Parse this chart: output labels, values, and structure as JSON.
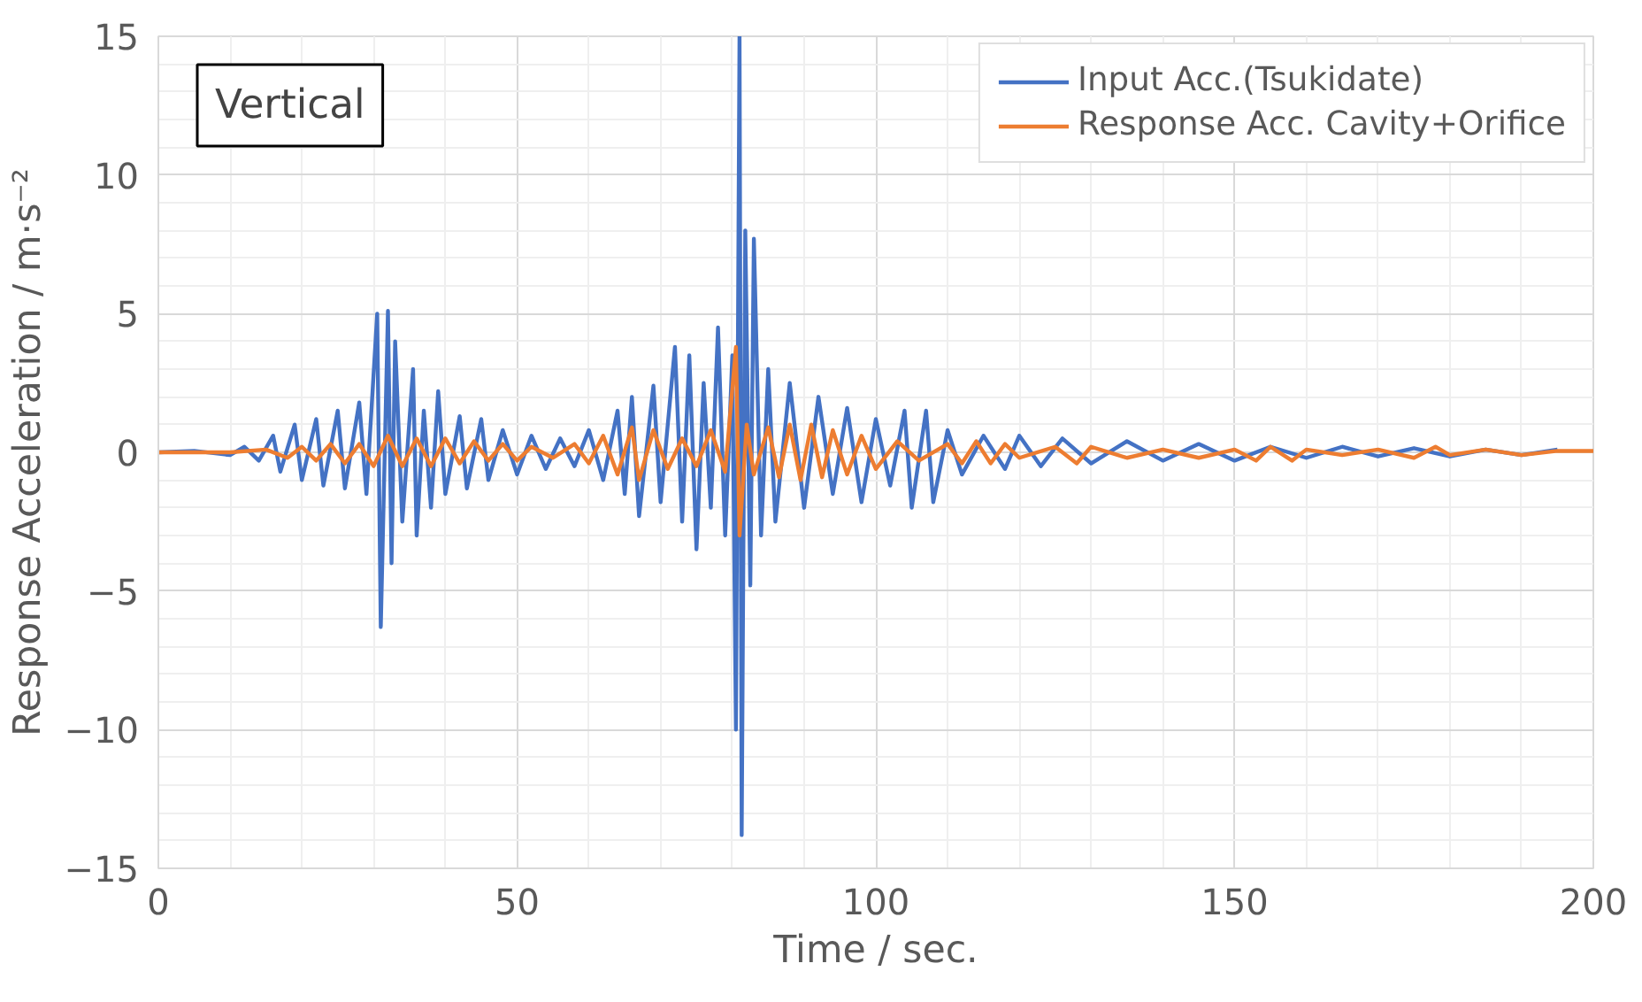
{
  "chart_data": {
    "type": "line",
    "xlabel": "Time / sec.",
    "ylabel": "Response Acceleration / m·s⁻²",
    "annotations": [
      "Vertical"
    ],
    "xlim": [
      0,
      200
    ],
    "ylim": [
      -15,
      15
    ],
    "xticks": [
      0,
      50,
      100,
      150,
      200
    ],
    "yticks": [
      -15,
      -10,
      -5,
      0,
      5,
      10,
      15
    ],
    "grid": true,
    "legend": "top right",
    "marker": "none",
    "line_style": "solid",
    "series": [
      {
        "name": "Input Acc.(Tsukidate)",
        "color": "#4472c4",
        "x": [
          0,
          5,
          10,
          12,
          14,
          16,
          17,
          19,
          20,
          22,
          23,
          25,
          26,
          28,
          29,
          30.5,
          31,
          32,
          32.5,
          33,
          34,
          35.5,
          36,
          37,
          38,
          39,
          40,
          42,
          43,
          45,
          46,
          48,
          50,
          52,
          54,
          56,
          58,
          60,
          62,
          64,
          65,
          66,
          67,
          69,
          70,
          72,
          73,
          74,
          75,
          76,
          77,
          78,
          79,
          80,
          80.5,
          81,
          81.3,
          81.8,
          82.5,
          83,
          84,
          85,
          86,
          88,
          90,
          92,
          94,
          96,
          98,
          100,
          102,
          104,
          105,
          107,
          108,
          110,
          112,
          115,
          118,
          120,
          123,
          126,
          130,
          135,
          140,
          145,
          150,
          155,
          160,
          165,
          170,
          175,
          180,
          185,
          190,
          195
        ],
        "values": [
          0,
          0.05,
          -0.1,
          0.2,
          -0.3,
          0.6,
          -0.7,
          1.0,
          -1.0,
          1.2,
          -1.2,
          1.5,
          -1.3,
          1.8,
          -1.5,
          5.0,
          -6.3,
          5.1,
          -4.0,
          4.0,
          -2.5,
          3.0,
          -3.0,
          1.5,
          -2.0,
          2.2,
          -1.5,
          1.3,
          -1.3,
          1.2,
          -1.0,
          0.8,
          -0.8,
          0.6,
          -0.6,
          0.5,
          -0.5,
          0.8,
          -1.0,
          1.5,
          -1.5,
          2.0,
          -2.3,
          2.4,
          -1.8,
          3.8,
          -2.5,
          3.5,
          -3.5,
          2.5,
          -2.0,
          4.5,
          -3.0,
          3.5,
          -10.0,
          15,
          -13.8,
          8.0,
          -4.8,
          7.7,
          -3.0,
          3.0,
          -2.5,
          2.5,
          -2.0,
          2.0,
          -1.5,
          1.6,
          -1.8,
          1.2,
          -1.2,
          1.5,
          -2.0,
          1.5,
          -1.8,
          0.8,
          -0.8,
          0.6,
          -0.6,
          0.6,
          -0.5,
          0.5,
          -0.4,
          0.4,
          -0.3,
          0.3,
          -0.3,
          0.2,
          -0.2,
          0.2,
          -0.15,
          0.15,
          -0.15,
          0.1,
          -0.1,
          0.1
        ]
      },
      {
        "name": "Response Acc. Cavity+Orifice",
        "color": "#ed7d31",
        "x": [
          0,
          10,
          15,
          18,
          20,
          22,
          24,
          26,
          28,
          30,
          32,
          34,
          36,
          38,
          40,
          42,
          44,
          46,
          48,
          50,
          52,
          55,
          58,
          60,
          62,
          64,
          66,
          67,
          69,
          71,
          73,
          75,
          77,
          79,
          80.5,
          81,
          82,
          83,
          85,
          86.5,
          88,
          89.5,
          91,
          92.5,
          94,
          96,
          98,
          100,
          103,
          106,
          110,
          112,
          114,
          116,
          118,
          120,
          125,
          128,
          130,
          135,
          140,
          145,
          150,
          153,
          155,
          158,
          160,
          165,
          170,
          175,
          178,
          180,
          185,
          190,
          195,
          200
        ],
        "values": [
          0,
          0,
          0.1,
          -0.2,
          0.2,
          -0.3,
          0.3,
          -0.4,
          0.3,
          -0.5,
          0.6,
          -0.5,
          0.5,
          -0.5,
          0.5,
          -0.4,
          0.4,
          -0.3,
          0.3,
          -0.3,
          0.2,
          -0.2,
          0.3,
          -0.4,
          0.6,
          -0.8,
          0.9,
          -1.0,
          0.8,
          -0.6,
          0.5,
          -0.5,
          0.8,
          -0.7,
          3.8,
          -3.0,
          1.0,
          -0.8,
          0.9,
          -0.9,
          1.0,
          -1.0,
          1.0,
          -0.9,
          0.8,
          -0.8,
          0.6,
          -0.6,
          0.4,
          -0.3,
          0.3,
          -0.4,
          0.4,
          -0.4,
          0.3,
          -0.2,
          0.2,
          -0.4,
          0.2,
          -0.2,
          0.1,
          -0.2,
          0.1,
          -0.3,
          0.2,
          -0.3,
          0.1,
          -0.1,
          0.1,
          -0.2,
          0.2,
          -0.1,
          0.1,
          -0.1,
          0.05,
          0.05
        ]
      }
    ]
  }
}
